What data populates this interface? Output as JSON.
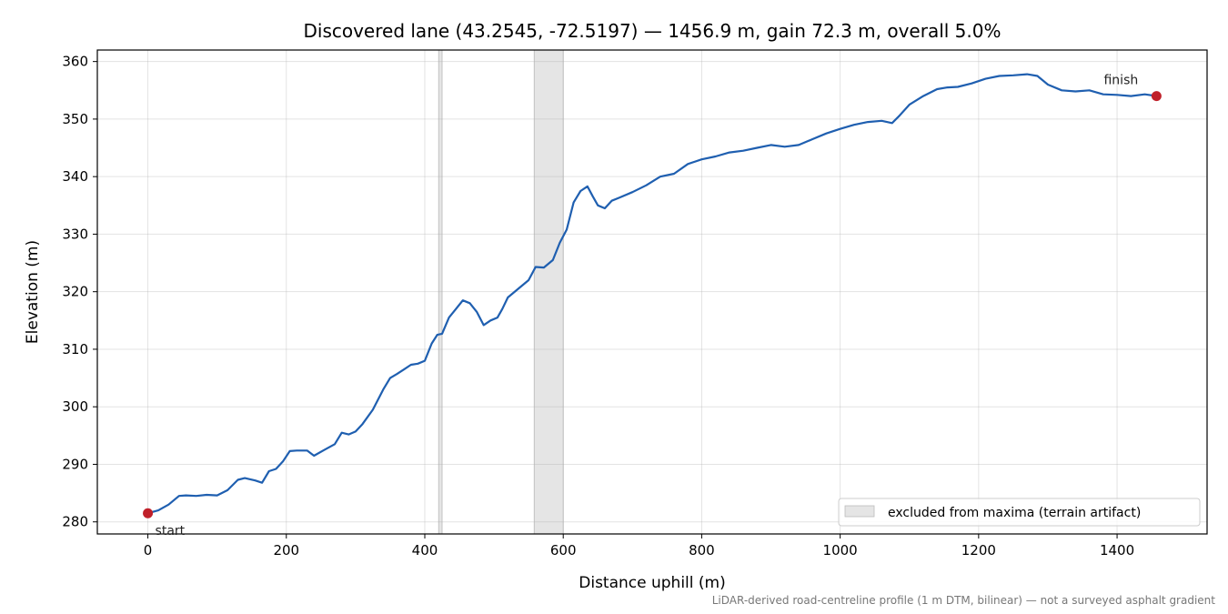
{
  "chart_data": {
    "type": "line",
    "title": "Discovered lane (43.2545, -72.5197) — 1456.9 m, gain 72.3 m, overall 5.0%",
    "xlabel": "Distance uphill (m)",
    "ylabel": "Elevation (m)",
    "xlim": [
      -73,
      1530
    ],
    "ylim": [
      277.9,
      362.0
    ],
    "xticks": [
      0,
      200,
      400,
      600,
      800,
      1000,
      1200,
      1400
    ],
    "yticks": [
      280,
      290,
      300,
      310,
      320,
      330,
      340,
      350,
      360
    ],
    "xtick_labels": [
      "0",
      "200",
      "400",
      "600",
      "800",
      "1000",
      "1200",
      "1400"
    ],
    "ytick_labels": [
      "280",
      "290",
      "300",
      "310",
      "320",
      "330",
      "340",
      "350",
      "360"
    ],
    "grid": true,
    "legend_position": "lower-right",
    "line_color": "#1f5fb0",
    "marker_color": "#c0202a",
    "band_color": "#d4d4d4",
    "excluded_bands": [
      {
        "x0": 420,
        "x1": 425
      },
      {
        "x0": 558,
        "x1": 600
      }
    ],
    "legend": {
      "band_label": "excluded from maxima (terrain artifact)"
    },
    "annotations": {
      "start": "start",
      "finish": "finish"
    },
    "footnote": "LiDAR-derived road-centreline profile (1 m DTM, bilinear) — not a surveyed asphalt gradient",
    "series": [
      {
        "x": [
          0,
          15,
          30,
          45,
          55,
          70,
          85,
          100,
          115,
          130,
          140,
          155,
          165,
          175,
          185,
          195,
          205,
          215,
          230,
          240,
          255,
          270,
          280,
          290,
          300,
          310,
          325,
          340,
          350,
          360,
          370,
          380,
          390,
          400,
          410,
          418,
          425,
          435,
          445,
          455,
          465,
          475,
          485,
          495,
          505,
          512,
          520,
          535,
          550,
          560,
          572,
          585,
          595,
          605,
          615,
          625,
          635,
          643,
          650,
          660,
          670,
          680,
          700,
          720,
          740,
          760,
          780,
          800,
          820,
          840,
          860,
          880,
          900,
          920,
          940,
          960,
          980,
          1000,
          1020,
          1040,
          1060,
          1075,
          1085,
          1100,
          1120,
          1140,
          1155,
          1170,
          1190,
          1210,
          1230,
          1250,
          1270,
          1285,
          1300,
          1320,
          1340,
          1360,
          1380,
          1400,
          1420,
          1440,
          1456.9
        ],
        "y": [
          281.5,
          282.0,
          283.0,
          284.5,
          284.6,
          284.5,
          284.7,
          284.6,
          285.5,
          287.3,
          287.6,
          287.2,
          286.8,
          288.8,
          289.2,
          290.5,
          292.3,
          292.4,
          292.4,
          291.5,
          292.5,
          293.5,
          295.5,
          295.2,
          295.7,
          297.0,
          299.5,
          303.0,
          305.0,
          305.7,
          306.5,
          307.3,
          307.5,
          308.0,
          311.0,
          312.5,
          312.7,
          315.5,
          317.0,
          318.5,
          318.0,
          316.5,
          314.2,
          315.0,
          315.5,
          317.0,
          319.0,
          320.5,
          322.0,
          324.3,
          324.2,
          325.5,
          328.5,
          330.8,
          335.5,
          337.5,
          338.3,
          336.5,
          335.0,
          334.5,
          335.8,
          336.3,
          337.3,
          338.5,
          340.0,
          340.5,
          342.2,
          343.0,
          343.5,
          344.2,
          344.5,
          345.0,
          345.5,
          345.2,
          345.5,
          346.5,
          347.5,
          348.3,
          349.0,
          349.5,
          349.7,
          349.3,
          350.5,
          352.5,
          354.0,
          355.2,
          355.5,
          355.6,
          356.2,
          357.0,
          357.5,
          357.6,
          357.8,
          357.5,
          356.0,
          355.0,
          354.8,
          355.0,
          354.3,
          354.2,
          354.0,
          354.3,
          354.0
        ]
      }
    ]
  }
}
